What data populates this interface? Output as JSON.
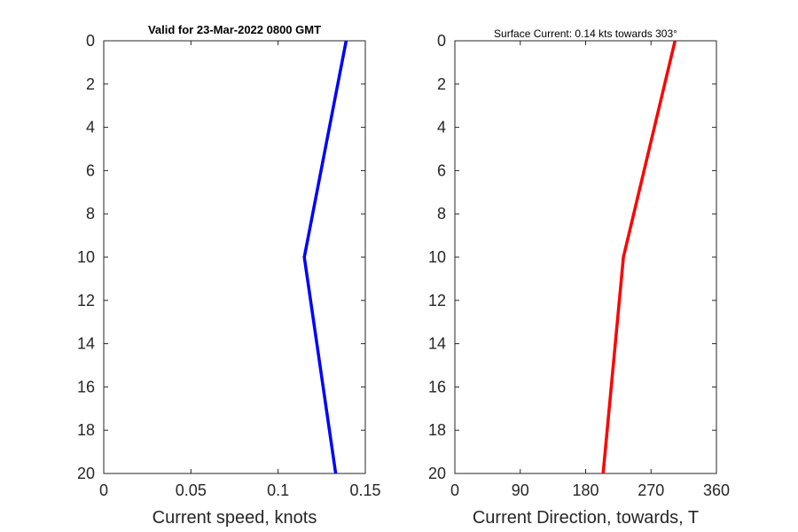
{
  "chart_data": [
    {
      "type": "line",
      "title": "Valid for 23-Mar-2022 0800 GMT",
      "xlabel": "Current speed, knots",
      "ylabel": "",
      "xlim": [
        0,
        0.15
      ],
      "ylim": [
        0,
        20
      ],
      "y_reversed": true,
      "xticks": [
        "0",
        "0.05",
        "0.1",
        "0.15"
      ],
      "yticks": [
        "0",
        "2",
        "4",
        "6",
        "8",
        "10",
        "12",
        "14",
        "16",
        "18",
        "20"
      ],
      "grid": false,
      "series": [
        {
          "color": "#0000ff",
          "x": [
            0.139,
            0.115,
            0.133
          ],
          "y": [
            0,
            10,
            20
          ]
        }
      ]
    },
    {
      "type": "line",
      "title": "Surface Current: 0.14 kts towards 303°",
      "xlabel": "Current Direction, towards, T",
      "ylabel": "",
      "xlim": [
        0,
        360
      ],
      "ylim": [
        0,
        20
      ],
      "y_reversed": true,
      "xticks": [
        "0",
        "90",
        "180",
        "270",
        "360"
      ],
      "yticks": [
        "0",
        "2",
        "4",
        "6",
        "8",
        "10",
        "12",
        "14",
        "16",
        "18",
        "20"
      ],
      "grid": false,
      "series": [
        {
          "color": "#ff0000",
          "x": [
            303,
            232,
            204
          ],
          "y": [
            0,
            10,
            20
          ]
        }
      ]
    }
  ]
}
